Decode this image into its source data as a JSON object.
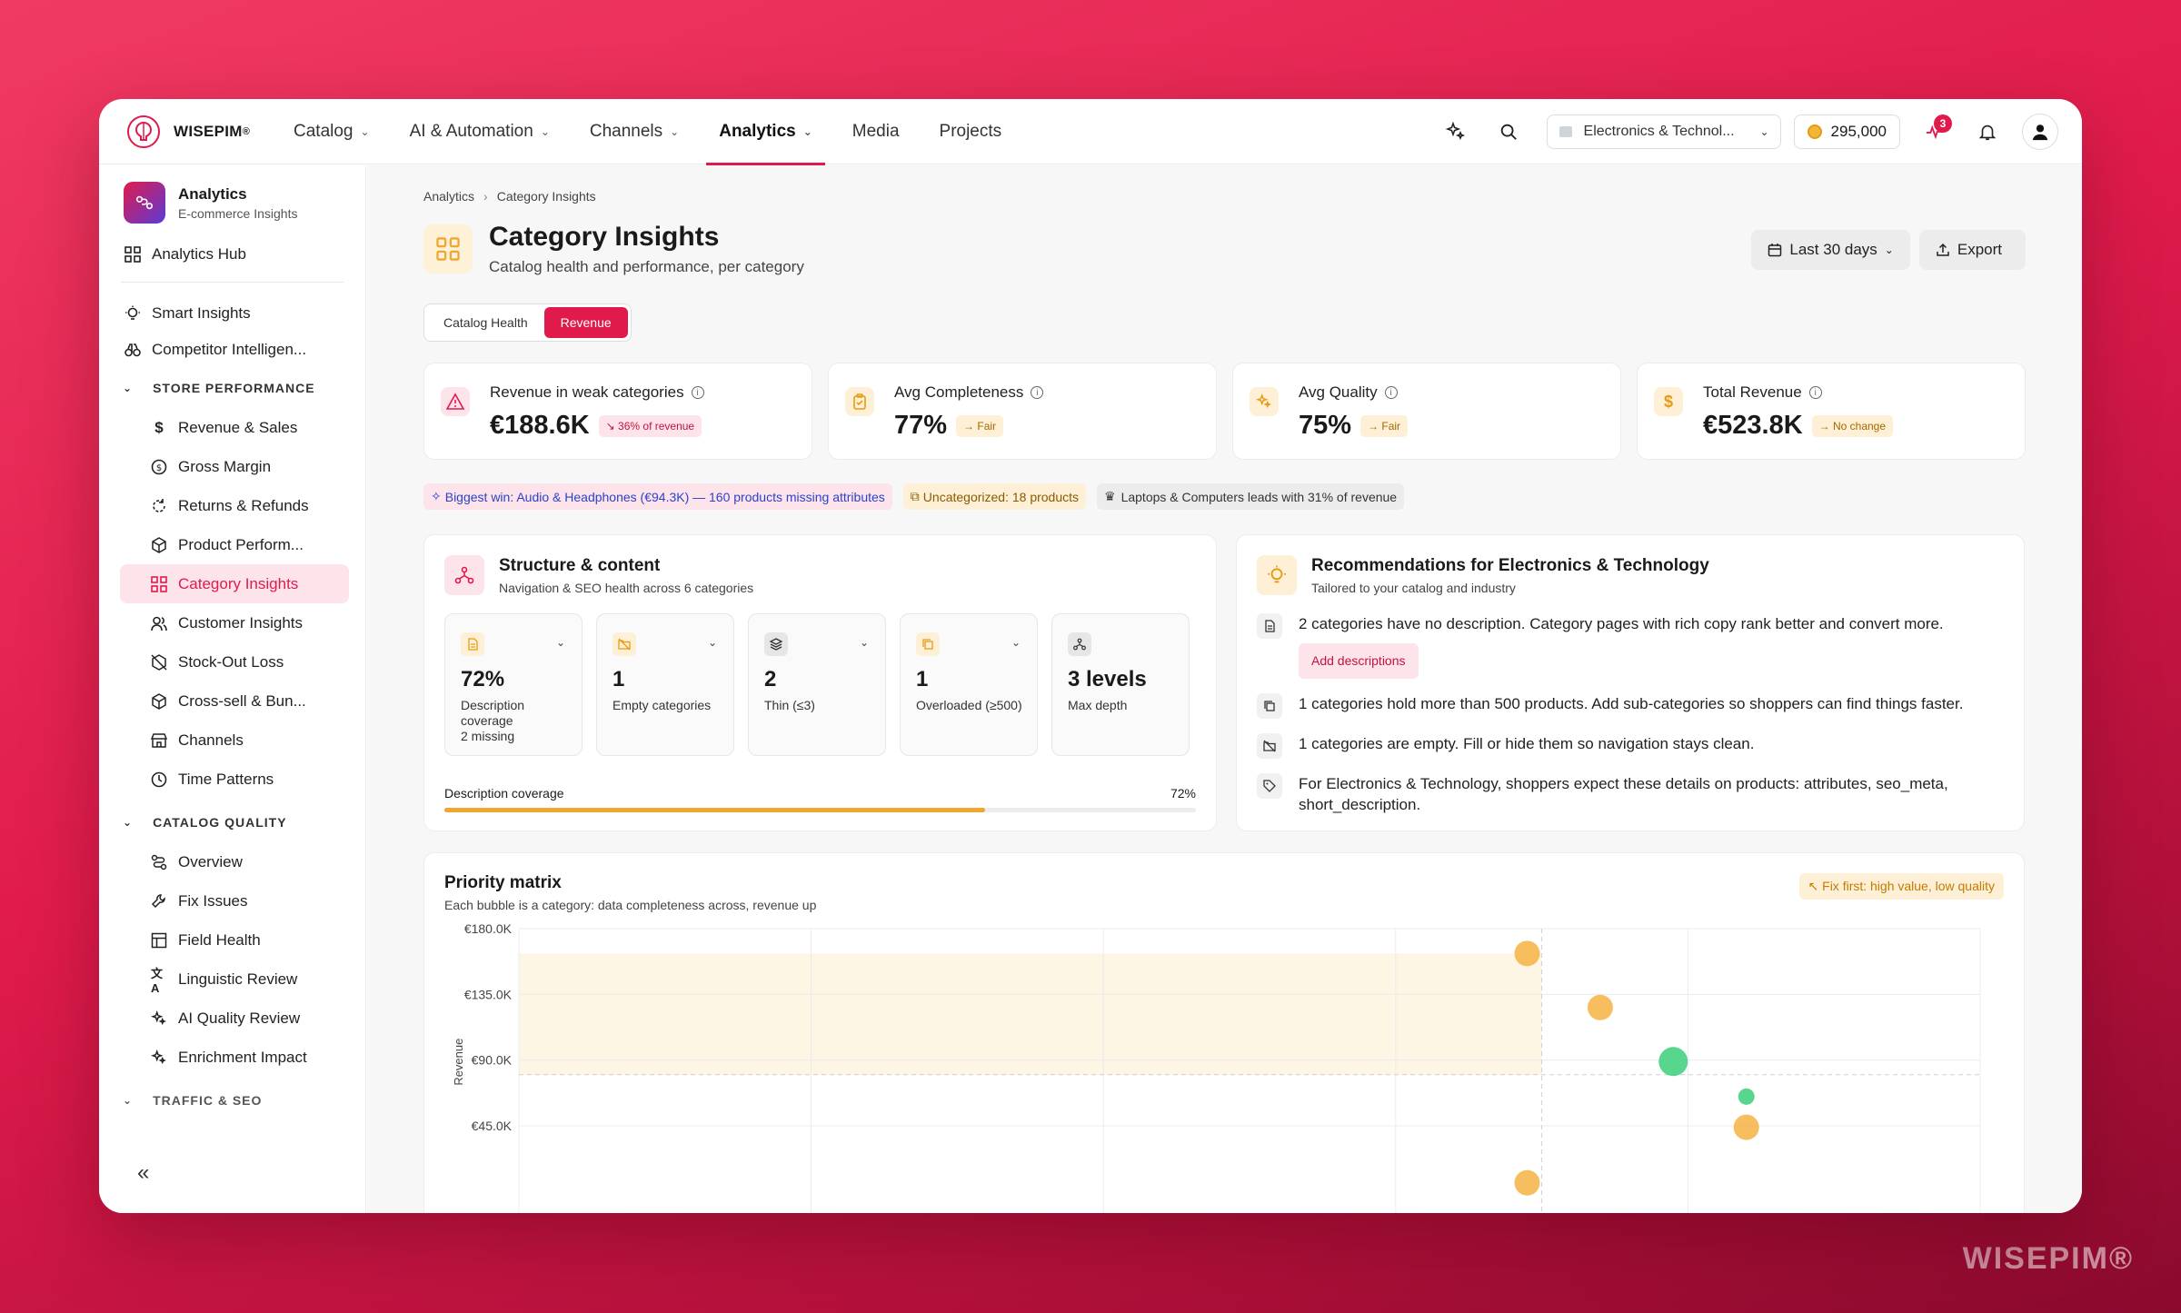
{
  "watermark": "WISEPIM®",
  "brand": {
    "name": "WISEPIM",
    "mark": "®"
  },
  "nav": [
    {
      "label": "Catalog",
      "dropdown": true
    },
    {
      "label": "AI & Automation",
      "dropdown": true
    },
    {
      "label": "Channels",
      "dropdown": true
    },
    {
      "label": "Analytics",
      "dropdown": true,
      "active": true
    },
    {
      "label": "Media",
      "dropdown": false
    },
    {
      "label": "Projects",
      "dropdown": false
    }
  ],
  "topbar": {
    "workspace": "Electronics & Technol...",
    "credits": "295,000",
    "notifications_badge": "3"
  },
  "sidebar": {
    "title": "Analytics",
    "subtitle": "E-commerce Insights",
    "hub": "Analytics Hub",
    "smart": "Smart Insights",
    "competitor": "Competitor Intelligen...",
    "sec_store": "STORE PERFORMANCE",
    "store_items": [
      "Revenue & Sales",
      "Gross Margin",
      "Returns & Refunds",
      "Product Perform...",
      "Category Insights",
      "Customer Insights",
      "Stock-Out Loss",
      "Cross-sell & Bun...",
      "Channels",
      "Time Patterns"
    ],
    "sec_quality": "CATALOG QUALITY",
    "quality_items": [
      "Overview",
      "Fix Issues",
      "Field Health",
      "Linguistic Review",
      "AI Quality Review",
      "Enrichment Impact"
    ],
    "sec_traffic": "TRAFFIC & SEO",
    "collapse": "«"
  },
  "breadcrumb": {
    "root": "Analytics",
    "current": "Category Insights"
  },
  "page": {
    "title": "Category Insights",
    "subtitle": "Catalog health and performance, per category",
    "range_btn": "Last 30 days",
    "export_btn": "Export"
  },
  "tabs": {
    "health": "Catalog Health",
    "revenue": "Revenue"
  },
  "kpis": [
    {
      "label": "Revenue in weak categories",
      "value": "€188.6K",
      "pill": "↘ 36% of revenue",
      "tone": "red"
    },
    {
      "label": "Avg Completeness",
      "value": "77%",
      "pill": "→ Fair",
      "tone": "amber"
    },
    {
      "label": "Avg Quality",
      "value": "75%",
      "pill": "→ Fair",
      "tone": "amber"
    },
    {
      "label": "Total Revenue",
      "value": "€523.8K",
      "pill": "→ No change",
      "tone": "amber"
    }
  ],
  "chips": {
    "win": "Biggest win: Audio & Headphones (€94.3K) — 160 products missing attributes",
    "uncat": "Uncategorized: 18 products",
    "leader": "Laptops & Computers leads with 31% of revenue"
  },
  "structure": {
    "title": "Structure & content",
    "subtitle": "Navigation & SEO health across 6 categories",
    "metrics": [
      {
        "value": "72%",
        "label": "Description coverage",
        "extra": "2 missing"
      },
      {
        "value": "1",
        "label": "Empty categories",
        "extra": ""
      },
      {
        "value": "2",
        "label": "Thin (≤3)",
        "extra": ""
      },
      {
        "value": "1",
        "label": "Overloaded (≥500)",
        "extra": ""
      },
      {
        "value": "3 levels",
        "label": "Max depth",
        "extra": ""
      }
    ],
    "progress_label": "Description coverage",
    "progress_value": "72%",
    "progress_fraction": 0.72
  },
  "recs": {
    "title": "Recommendations for Electronics & Technology",
    "subtitle": "Tailored to your catalog and industry",
    "items": [
      "2 categories have no description. Category pages with rich copy rank better and convert more.",
      "1 categories hold more than 500 products. Add sub-categories so shoppers can find things faster.",
      "1 categories are empty. Fill or hide them so navigation stays clean.",
      "For Electronics & Technology, shoppers expect these details on products: attributes, seo_meta, short_description."
    ],
    "action": "Add descriptions"
  },
  "matrix": {
    "title": "Priority matrix",
    "subtitle": "Each bubble is a category: data completeness across, revenue up",
    "pill": "↖ Fix first: high value, low quality",
    "ylabel": "Revenue",
    "colors": {
      "amber": "#f5b342",
      "green": "#3ccf7a"
    }
  },
  "chart_data": {
    "type": "scatter",
    "title": "Priority matrix",
    "ylabel": "Revenue",
    "yticks": [
      "€180.0K",
      "€135.0K",
      "€90.0K",
      "€45.0K"
    ],
    "ylim": [
      0,
      180000
    ],
    "xlim": [
      0,
      100
    ],
    "threshold_x": 70,
    "threshold_y": 80000,
    "series": [
      {
        "color": "#f5b342",
        "points": [
          [
            69,
            163000
          ],
          [
            74,
            126000
          ],
          [
            84,
            44000
          ],
          [
            69,
            6000
          ]
        ],
        "sizes": [
          14,
          14,
          14,
          14
        ]
      },
      {
        "color": "#3ccf7a",
        "points": [
          [
            79,
            89000
          ],
          [
            84,
            65000
          ]
        ],
        "sizes": [
          16,
          9
        ]
      }
    ]
  }
}
